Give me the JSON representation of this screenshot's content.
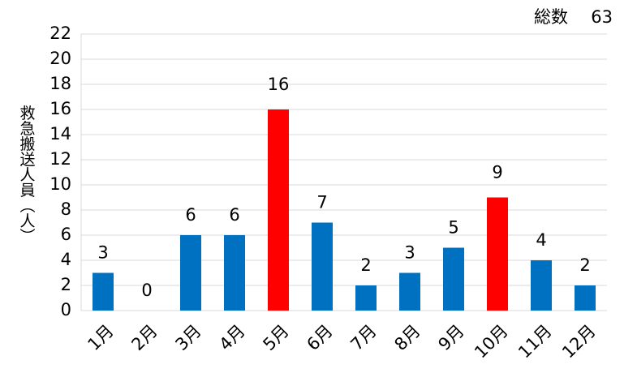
{
  "chart_data": {
    "type": "bar",
    "y_label": "救急搬送人員（人）",
    "total_label": "総数",
    "total": 63,
    "categories": [
      "1月",
      "2月",
      "3月",
      "4月",
      "5月",
      "6月",
      "7月",
      "8月",
      "9月",
      "10月",
      "11月",
      "12月"
    ],
    "values": [
      3,
      0,
      6,
      6,
      16,
      7,
      2,
      3,
      5,
      9,
      4,
      2
    ],
    "colors": [
      "#0070c0",
      "#0070c0",
      "#0070c0",
      "#0070c0",
      "#ff0000",
      "#0070c0",
      "#0070c0",
      "#0070c0",
      "#0070c0",
      "#ff0000",
      "#0070c0",
      "#0070c0"
    ],
    "ylim": [
      0,
      22
    ],
    "yticks": [
      0,
      2,
      4,
      6,
      8,
      10,
      12,
      14,
      16,
      18,
      20,
      22
    ],
    "grid": true
  }
}
